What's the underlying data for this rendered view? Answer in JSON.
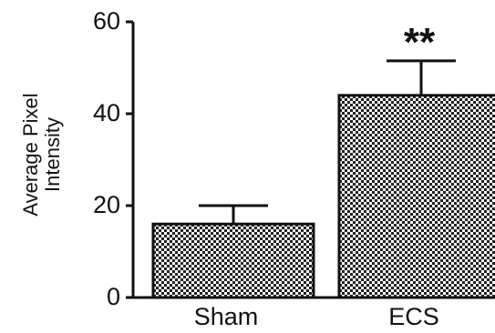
{
  "chart_data": {
    "type": "bar",
    "categories": [
      "Sham",
      "ECS"
    ],
    "values": [
      16,
      44
    ],
    "errors": [
      4,
      7.5
    ],
    "ylabel": [
      "Average Pixel",
      "Intensity"
    ],
    "ylim": [
      0,
      60
    ],
    "yticks": [
      "0",
      "20",
      "40",
      "60"
    ],
    "annotations": [
      {
        "category": "ECS",
        "text": "**"
      }
    ],
    "grid": false,
    "legend": "none",
    "colors": {
      "bar_edge": "#111111",
      "bar_pattern_dark": "#222222",
      "bar_pattern_light": "#ffffff"
    }
  }
}
